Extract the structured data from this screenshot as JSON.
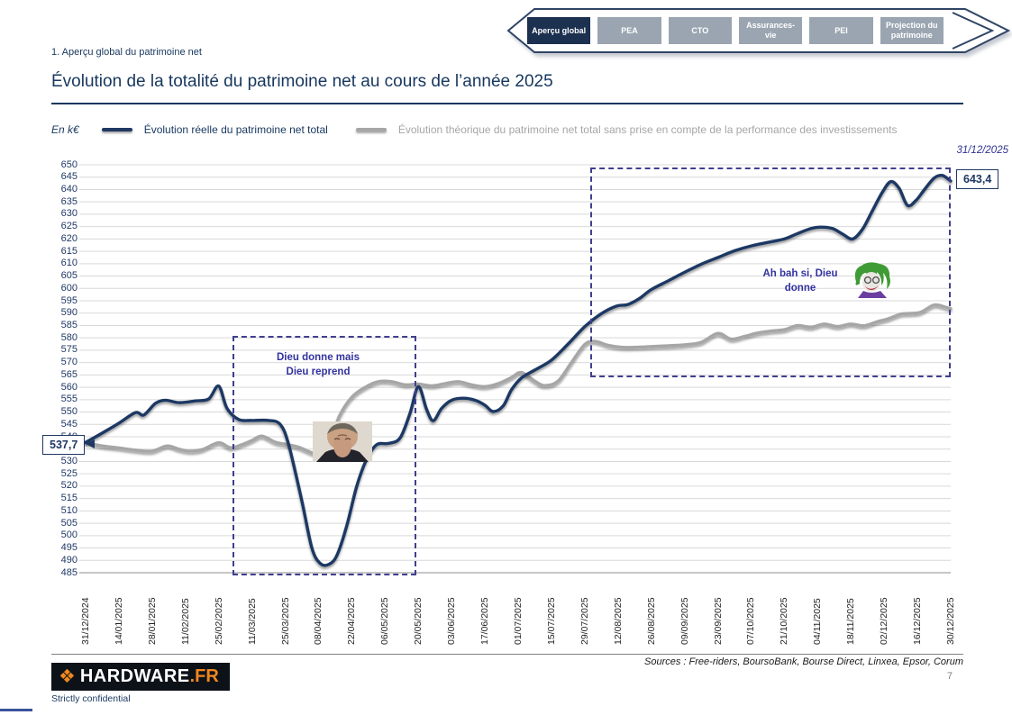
{
  "nav": {
    "tabs": [
      {
        "label": "Aperçu global",
        "active": true
      },
      {
        "label": "PEA",
        "active": false
      },
      {
        "label": "CTO",
        "active": false
      },
      {
        "label": "Assurances-vie",
        "active": false
      },
      {
        "label": "PEI",
        "active": false
      },
      {
        "label": "Projection du patrimoine",
        "active": false
      }
    ]
  },
  "header": {
    "breadcrumb": "1. Aperçu global du patrimoine net",
    "title": "Évolution de la totalité du patrimoine net au cours de l’année 2025"
  },
  "legend": {
    "unit": "En k€",
    "series1": "Évolution réelle du patrimoine net total",
    "series2": "Évolution théorique du patrimoine net total sans prise en compte de la performance des investissements"
  },
  "annotations": {
    "date_label": "31/12/2025",
    "start_label": "537,7",
    "end_label": "643,4",
    "box1_text": "Dieu donne mais\nDieu reprend",
    "box2_text": "Ah bah si, Dieu\ndonne",
    "box1_image": "man-facepalm-photo",
    "box2_image": "joker-meme-photo"
  },
  "chart_data": {
    "type": "line",
    "title": "Évolution de la totalité du patrimoine net au cours de l’année 2025",
    "ylabel": "En k€",
    "ylim": [
      485,
      650
    ],
    "ytick_step": 5,
    "grid": "horizontal",
    "legend_position": "top",
    "start_value": 537.7,
    "end_value": 643.4,
    "categories": [
      "31/12/2024",
      "14/01/2025",
      "28/01/2025",
      "11/02/2025",
      "25/02/2025",
      "11/03/2025",
      "25/03/2025",
      "08/04/2025",
      "22/04/2025",
      "06/05/2025",
      "20/05/2025",
      "03/06/2025",
      "17/06/2025",
      "01/07/2025",
      "15/07/2025",
      "29/07/2025",
      "12/08/2025",
      "26/08/2025",
      "09/09/2025",
      "23/09/2025",
      "07/10/2025",
      "21/10/2025",
      "04/11/2025",
      "18/11/2025",
      "02/12/2025",
      "16/12/2025",
      "30/12/2025"
    ],
    "series": [
      {
        "name": "Évolution réelle du patrimoine net total",
        "color": "#1F3864",
        "points": [
          [
            0,
            537.7
          ],
          [
            0.5,
            541.5
          ],
          [
            1,
            545.5
          ],
          [
            1.5,
            549.8
          ],
          [
            1.75,
            548.8
          ],
          [
            2.1,
            553.5
          ],
          [
            2.4,
            554.8
          ],
          [
            2.8,
            553.8
          ],
          [
            3.3,
            554.5
          ],
          [
            3.7,
            555.3
          ],
          [
            4,
            560.5
          ],
          [
            4.25,
            551.5
          ],
          [
            4.6,
            547.0
          ],
          [
            5,
            546.6
          ],
          [
            5.5,
            546.6
          ],
          [
            5.85,
            545.0
          ],
          [
            6.1,
            537.0
          ],
          [
            6.5,
            514.0
          ],
          [
            6.8,
            495.0
          ],
          [
            7.05,
            488.8
          ],
          [
            7.3,
            488.3
          ],
          [
            7.55,
            492.0
          ],
          [
            7.85,
            504.0
          ],
          [
            8.15,
            520.0
          ],
          [
            8.45,
            531.0
          ],
          [
            8.75,
            536.8
          ],
          [
            9.1,
            537.3
          ],
          [
            9.45,
            539.5
          ],
          [
            9.75,
            549.5
          ],
          [
            10,
            560.3
          ],
          [
            10.25,
            551.0
          ],
          [
            10.45,
            546.5
          ],
          [
            10.7,
            551.5
          ],
          [
            11,
            554.8
          ],
          [
            11.35,
            555.6
          ],
          [
            11.7,
            554.8
          ],
          [
            12,
            552.8
          ],
          [
            12.25,
            550.2
          ],
          [
            12.55,
            552.5
          ],
          [
            12.8,
            559.0
          ],
          [
            13.1,
            563.8
          ],
          [
            13.5,
            567.0
          ],
          [
            14,
            571.0
          ],
          [
            14.5,
            577.5
          ],
          [
            15,
            584.5
          ],
          [
            15.5,
            589.8
          ],
          [
            15.95,
            592.8
          ],
          [
            16.3,
            593.5
          ],
          [
            16.65,
            596.0
          ],
          [
            17,
            599.5
          ],
          [
            17.5,
            603.0
          ],
          [
            18,
            606.5
          ],
          [
            18.5,
            609.8
          ],
          [
            19,
            612.5
          ],
          [
            19.5,
            615.2
          ],
          [
            20,
            617.2
          ],
          [
            20.5,
            618.6
          ],
          [
            21,
            620.0
          ],
          [
            21.4,
            622.2
          ],
          [
            21.8,
            624.2
          ],
          [
            22.1,
            624.8
          ],
          [
            22.45,
            624.2
          ],
          [
            22.75,
            622.0
          ],
          [
            23.05,
            620.0
          ],
          [
            23.35,
            624.0
          ],
          [
            23.65,
            631.5
          ],
          [
            23.95,
            639.0
          ],
          [
            24.2,
            643.2
          ],
          [
            24.45,
            640.5
          ],
          [
            24.7,
            633.6
          ],
          [
            24.95,
            635.5
          ],
          [
            25.2,
            639.8
          ],
          [
            25.5,
            644.6
          ],
          [
            25.75,
            645.7
          ],
          [
            26,
            643.4
          ]
        ]
      },
      {
        "name": "Évolution théorique du patrimoine net total sans prise en compte de la performance des investissements",
        "color": "#A6A6A6",
        "points": [
          [
            0,
            537.7
          ],
          [
            0.5,
            536.3
          ],
          [
            1,
            535.5
          ],
          [
            1.5,
            534.6
          ],
          [
            2,
            534.2
          ],
          [
            2.45,
            536.3
          ],
          [
            2.8,
            535.0
          ],
          [
            3.1,
            534.2
          ],
          [
            3.5,
            534.8
          ],
          [
            4,
            537.6
          ],
          [
            4.35,
            535.6
          ],
          [
            4.7,
            536.8
          ],
          [
            5,
            538.5
          ],
          [
            5.3,
            540.3
          ],
          [
            5.7,
            537.8
          ],
          [
            6,
            537.0
          ],
          [
            6.4,
            535.8
          ],
          [
            6.8,
            533.5
          ],
          [
            7.05,
            532.8
          ],
          [
            7.35,
            539.0
          ],
          [
            7.65,
            549.0
          ],
          [
            8,
            556.0
          ],
          [
            8.4,
            560.0
          ],
          [
            8.8,
            562.3
          ],
          [
            9.2,
            562.3
          ],
          [
            9.6,
            561.0
          ],
          [
            10,
            561.3
          ],
          [
            10.4,
            560.6
          ],
          [
            10.8,
            561.5
          ],
          [
            11.2,
            562.3
          ],
          [
            11.6,
            561.0
          ],
          [
            12,
            560.3
          ],
          [
            12.4,
            561.5
          ],
          [
            12.8,
            564.0
          ],
          [
            13.1,
            566.0
          ],
          [
            13.5,
            562.5
          ],
          [
            13.8,
            560.7
          ],
          [
            14.2,
            562.5
          ],
          [
            14.6,
            570.0
          ],
          [
            15,
            577.3
          ],
          [
            15.3,
            578.6
          ],
          [
            15.7,
            577.0
          ],
          [
            16.1,
            576.2
          ],
          [
            16.5,
            576.2
          ],
          [
            17,
            576.5
          ],
          [
            17.5,
            576.8
          ],
          [
            18,
            577.2
          ],
          [
            18.5,
            578.2
          ],
          [
            19,
            581.8
          ],
          [
            19.4,
            579.5
          ],
          [
            19.8,
            580.6
          ],
          [
            20.2,
            582.0
          ],
          [
            20.6,
            582.8
          ],
          [
            21,
            583.3
          ],
          [
            21.4,
            585.0
          ],
          [
            21.8,
            584.3
          ],
          [
            22.2,
            585.6
          ],
          [
            22.6,
            584.6
          ],
          [
            23,
            585.6
          ],
          [
            23.4,
            584.9
          ],
          [
            23.8,
            586.6
          ],
          [
            24.1,
            587.6
          ],
          [
            24.5,
            589.6
          ],
          [
            24.8,
            589.9
          ],
          [
            25.1,
            590.4
          ],
          [
            25.5,
            593.3
          ],
          [
            25.8,
            592.6
          ],
          [
            26,
            591.8
          ]
        ]
      }
    ]
  },
  "footer": {
    "sources": "Sources : Free-riders, BoursoBank, Bourse Direct, Linxea, Epsor, Corum",
    "page": "7",
    "confidential": "Strictly confidential",
    "logo_mark": "hardware-fr-diamond-icon",
    "logo_main": "HARDWARE",
    "logo_suffix": ".FR"
  }
}
